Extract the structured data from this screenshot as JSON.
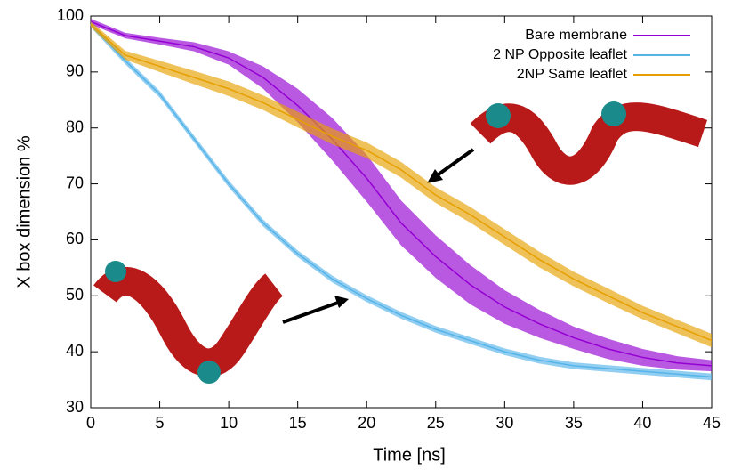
{
  "chart_data": {
    "type": "line",
    "x_label": "Time [ns]",
    "y_label": "X box dimension %",
    "x": [
      0,
      2.5,
      5,
      7.5,
      10,
      12.5,
      15,
      17.5,
      20,
      22.5,
      25,
      27.5,
      30,
      32.5,
      35,
      37.5,
      40,
      42.5,
      45
    ],
    "series": [
      {
        "name": "Bare membrane",
        "color": "#9400d3",
        "values": [
          99,
          96.5,
          95.5,
          94.5,
          92.5,
          89,
          84,
          78,
          71,
          63,
          57,
          52,
          48,
          45,
          42.5,
          40.5,
          39,
          38,
          37.5
        ],
        "error": [
          0.5,
          0.5,
          0.6,
          0.8,
          1.2,
          2,
          3,
          3.8,
          4.2,
          4,
          3.8,
          3.5,
          3,
          2.5,
          2,
          1.8,
          1.5,
          1.2,
          1
        ]
      },
      {
        "name": "2 NP Opposite leaflet",
        "color": "#56b4e9",
        "values": [
          98.5,
          92,
          86,
          78,
          70,
          63,
          57.5,
          53,
          49.5,
          46.5,
          44,
          42,
          40,
          38.5,
          37.5,
          37,
          36.5,
          36,
          35.5
        ],
        "error": [
          0.5,
          0.6,
          0.6,
          0.6,
          0.6,
          0.6,
          0.6,
          0.6,
          0.6,
          0.6,
          0.6,
          0.6,
          0.6,
          0.6,
          0.6,
          0.6,
          0.6,
          0.6,
          0.6
        ]
      },
      {
        "name": "2NP Same leaflet",
        "color": "#e69f00",
        "values": [
          98.5,
          93,
          91,
          89,
          87,
          84.5,
          81.5,
          78.5,
          76,
          72.5,
          68,
          64.5,
          60.5,
          56.5,
          53,
          50,
          47,
          44.5,
          42
        ],
        "error": [
          0.5,
          0.8,
          1,
          1.2,
          1.3,
          1.3,
          1.4,
          1.4,
          1.4,
          1.4,
          1.4,
          1.4,
          1.4,
          1.4,
          1.3,
          1.3,
          1.2,
          1.2,
          1.2
        ]
      }
    ],
    "xlim": [
      0,
      45
    ],
    "xticks": [
      0,
      5,
      10,
      15,
      20,
      25,
      30,
      35,
      40,
      45
    ],
    "ylim": [
      30,
      100
    ],
    "yticks": [
      30,
      40,
      50,
      60,
      70,
      80,
      90,
      100
    ],
    "grid": false,
    "legend": "top-right"
  }
}
